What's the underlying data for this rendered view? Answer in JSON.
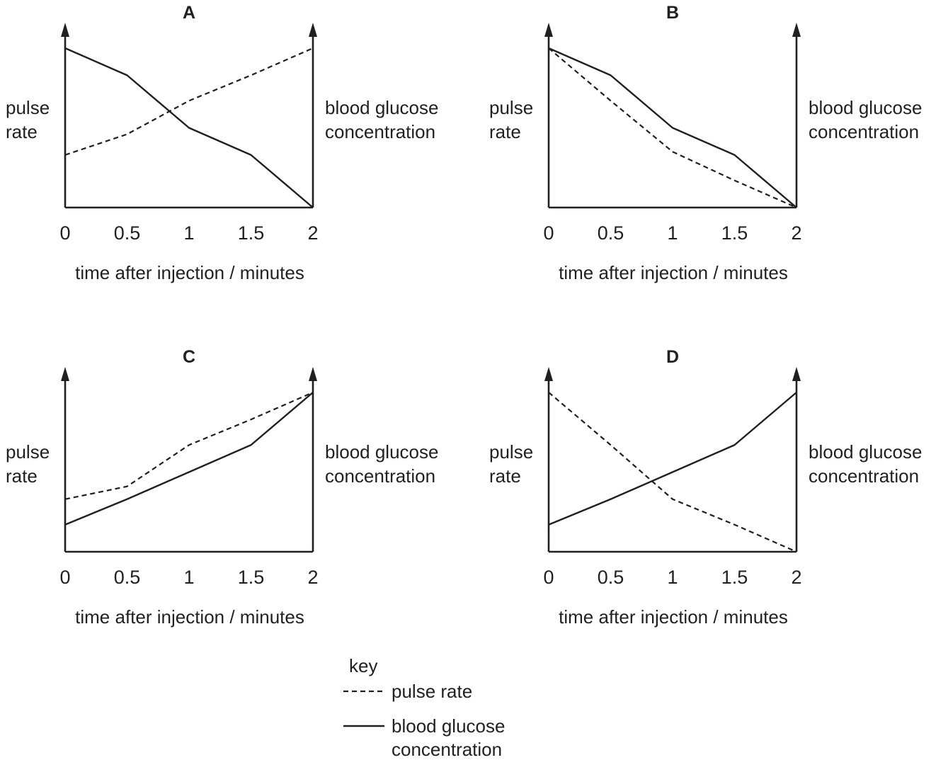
{
  "chart_data": [
    {
      "type": "line",
      "title": "A",
      "xlabel": "time after injection / minutes",
      "ylabel_left": [
        "pulse",
        "rate"
      ],
      "ylabel_right": [
        "blood glucose",
        "concentration"
      ],
      "x_ticks": [
        "0",
        "0.5",
        "1",
        "1.5",
        "2"
      ],
      "xlim": [
        0,
        2
      ],
      "ylim": [
        0,
        1
      ],
      "x": [
        0,
        0.5,
        1,
        1.5,
        2
      ],
      "series": [
        {
          "name": "pulse rate",
          "style": "dashed",
          "values": [
            0.33,
            0.46,
            0.67,
            0.83,
            1.0
          ]
        },
        {
          "name": "blood glucose concentration",
          "style": "solid",
          "values": [
            1.0,
            0.83,
            0.5,
            0.33,
            0.0
          ]
        }
      ]
    },
    {
      "type": "line",
      "title": "B",
      "xlabel": "time after injection / minutes",
      "ylabel_left": [
        "pulse",
        "rate"
      ],
      "ylabel_right": [
        "blood glucose",
        "concentration"
      ],
      "x_ticks": [
        "0",
        "0.5",
        "1",
        "1.5",
        "2"
      ],
      "xlim": [
        0,
        2
      ],
      "ylim": [
        0,
        1
      ],
      "x": [
        0,
        0.5,
        1,
        1.5,
        2
      ],
      "series": [
        {
          "name": "pulse rate",
          "style": "dashed",
          "values": [
            1.0,
            0.67,
            0.35,
            0.17,
            0.0
          ]
        },
        {
          "name": "blood glucose concentration",
          "style": "solid",
          "values": [
            1.0,
            0.83,
            0.5,
            0.33,
            0.0
          ]
        }
      ]
    },
    {
      "type": "line",
      "title": "C",
      "xlabel": "time after injection / minutes",
      "ylabel_left": [
        "pulse",
        "rate"
      ],
      "ylabel_right": [
        "blood glucose",
        "concentration"
      ],
      "x_ticks": [
        "0",
        "0.5",
        "1",
        "1.5",
        "2"
      ],
      "xlim": [
        0,
        2
      ],
      "ylim": [
        0,
        1
      ],
      "x": [
        0,
        0.5,
        1,
        1.5,
        2
      ],
      "series": [
        {
          "name": "pulse rate",
          "style": "dashed",
          "values": [
            0.33,
            0.41,
            0.67,
            0.83,
            1.0
          ]
        },
        {
          "name": "blood glucose concentration",
          "style": "solid",
          "values": [
            0.17,
            0.33,
            0.5,
            0.67,
            1.0
          ]
        }
      ]
    },
    {
      "type": "line",
      "title": "D",
      "xlabel": "time after injection / minutes",
      "ylabel_left": [
        "pulse",
        "rate"
      ],
      "ylabel_right": [
        "blood glucose",
        "concentration"
      ],
      "x_ticks": [
        "0",
        "0.5",
        "1",
        "1.5",
        "2"
      ],
      "xlim": [
        0,
        2
      ],
      "ylim": [
        0,
        1
      ],
      "x": [
        0,
        0.5,
        1,
        1.5,
        2
      ],
      "series": [
        {
          "name": "pulse rate",
          "style": "dashed",
          "values": [
            1.0,
            0.67,
            0.33,
            0.17,
            0.0
          ]
        },
        {
          "name": "blood glucose concentration",
          "style": "solid",
          "values": [
            0.17,
            0.33,
            0.5,
            0.67,
            1.0
          ]
        }
      ]
    }
  ],
  "key": {
    "heading": "key",
    "entries": [
      {
        "style": "dashed",
        "lines": [
          "pulse rate"
        ]
      },
      {
        "style": "solid",
        "lines": [
          "blood glucose",
          "concentration"
        ]
      }
    ]
  },
  "colors": {
    "ink": "#231f20",
    "background": "#ffffff"
  }
}
